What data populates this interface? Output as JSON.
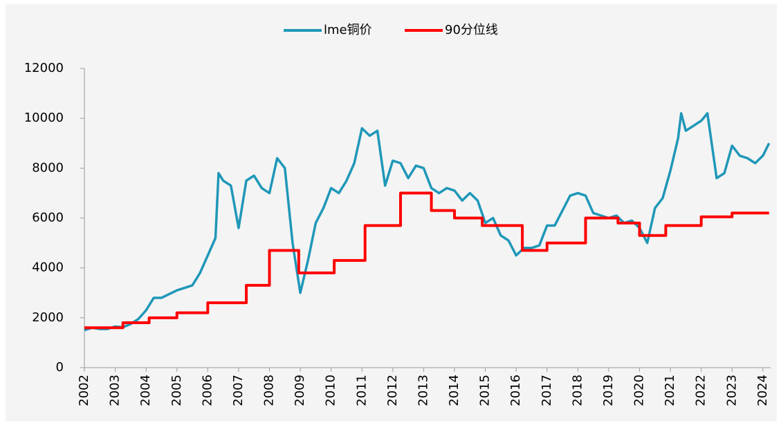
{
  "chart_data": {
    "type": "line",
    "xlim": [
      2002,
      2024.25
    ],
    "xticks": [
      {
        "value": 2002,
        "label": "2002"
      },
      {
        "value": 2003,
        "label": "2003"
      },
      {
        "value": 2004,
        "label": "2004"
      },
      {
        "value": 2005,
        "label": "2005"
      },
      {
        "value": 2006,
        "label": "2006"
      },
      {
        "value": 2007,
        "label": "2007"
      },
      {
        "value": 2008,
        "label": "2008"
      },
      {
        "value": 2009,
        "label": "2009"
      },
      {
        "value": 2010,
        "label": "2010"
      },
      {
        "value": 2011,
        "label": "2011"
      },
      {
        "value": 2012,
        "label": "2012"
      },
      {
        "value": 2013,
        "label": "2013"
      },
      {
        "value": 2014,
        "label": "2014"
      },
      {
        "value": 2015,
        "label": "2015"
      },
      {
        "value": 2016,
        "label": "2016"
      },
      {
        "value": 2017,
        "label": "2017"
      },
      {
        "value": 2018,
        "label": "2018"
      },
      {
        "value": 2019,
        "label": "2019"
      },
      {
        "value": 2020,
        "label": "2020"
      },
      {
        "value": 2021,
        "label": "2021"
      },
      {
        "value": 2022,
        "label": "2022"
      },
      {
        "value": 2023,
        "label": "2023"
      },
      {
        "value": 2024,
        "label": "2024"
      }
    ],
    "ylim": [
      0,
      12000
    ],
    "yticks": [
      0,
      2000,
      4000,
      6000,
      8000,
      10000,
      12000
    ],
    "legend": "top",
    "series": [
      {
        "name": "lme铜价",
        "color": "#1f97b8",
        "x": [
          2002.0,
          2002.25,
          2002.5,
          2002.75,
          2003.0,
          2003.25,
          2003.5,
          2003.75,
          2004.0,
          2004.25,
          2004.5,
          2004.75,
          2005.0,
          2005.25,
          2005.5,
          2005.75,
          2006.0,
          2006.25,
          2006.35,
          2006.5,
          2006.75,
          2007.0,
          2007.25,
          2007.5,
          2007.75,
          2008.0,
          2008.25,
          2008.5,
          2008.75,
          2009.0,
          2009.25,
          2009.5,
          2009.75,
          2010.0,
          2010.25,
          2010.5,
          2010.75,
          2011.0,
          2011.25,
          2011.5,
          2011.75,
          2012.0,
          2012.25,
          2012.5,
          2012.75,
          2013.0,
          2013.25,
          2013.5,
          2013.75,
          2014.0,
          2014.25,
          2014.5,
          2014.75,
          2015.0,
          2015.25,
          2015.5,
          2015.75,
          2016.0,
          2016.25,
          2016.5,
          2016.75,
          2017.0,
          2017.25,
          2017.5,
          2017.75,
          2018.0,
          2018.25,
          2018.5,
          2018.75,
          2019.0,
          2019.25,
          2019.5,
          2019.75,
          2020.0,
          2020.25,
          2020.5,
          2020.75,
          2021.0,
          2021.25,
          2021.35,
          2021.5,
          2021.75,
          2022.0,
          2022.2,
          2022.5,
          2022.75,
          2023.0,
          2023.25,
          2023.5,
          2023.75,
          2024.0,
          2024.2
        ],
        "values": [
          1500,
          1600,
          1550,
          1550,
          1650,
          1620,
          1750,
          1950,
          2300,
          2800,
          2800,
          2950,
          3100,
          3200,
          3300,
          3800,
          4500,
          5200,
          7800,
          7500,
          7300,
          5600,
          7500,
          7700,
          7200,
          7000,
          8400,
          8000,
          5000,
          3000,
          4300,
          5800,
          6400,
          7200,
          7000,
          7500,
          8200,
          9600,
          9300,
          9500,
          7300,
          8300,
          8200,
          7600,
          8100,
          8000,
          7200,
          7000,
          7200,
          7100,
          6700,
          7000,
          6700,
          5800,
          6000,
          5300,
          5100,
          4500,
          4800,
          4800,
          4900,
          5700,
          5700,
          6300,
          6900,
          7000,
          6900,
          6200,
          6100,
          6000,
          6100,
          5800,
          5900,
          5600,
          5000,
          6400,
          6800,
          7900,
          9200,
          10200,
          9500,
          9700,
          9900,
          10200,
          7600,
          7800,
          8900,
          8500,
          8400,
          8200,
          8500,
          9000
        ]
      },
      {
        "name": "90分位线",
        "color": "#ff0000",
        "x": [
          2002.0,
          2003.25,
          2003.25,
          2004.1,
          2004.1,
          2005.0,
          2005.0,
          2006.0,
          2006.0,
          2007.25,
          2007.25,
          2008.0,
          2008.0,
          2008.95,
          2008.95,
          2010.1,
          2010.1,
          2011.1,
          2011.1,
          2012.25,
          2012.25,
          2013.25,
          2013.25,
          2014.0,
          2014.0,
          2014.9,
          2014.9,
          2016.2,
          2016.2,
          2017.0,
          2017.0,
          2018.25,
          2018.25,
          2019.3,
          2019.3,
          2020.0,
          2020.0,
          2020.85,
          2020.85,
          2022.0,
          2022.0,
          2023.0,
          2023.0,
          2024.2
        ],
        "values": [
          1600,
          1600,
          1800,
          1800,
          2000,
          2000,
          2200,
          2200,
          2600,
          2600,
          3300,
          3300,
          4700,
          4700,
          3800,
          3800,
          4300,
          4300,
          5700,
          5700,
          7000,
          7000,
          6300,
          6300,
          6000,
          6000,
          5700,
          5700,
          4700,
          4700,
          5000,
          5000,
          6000,
          6000,
          5800,
          5800,
          5300,
          5300,
          5700,
          5700,
          6050,
          6050,
          6200,
          6200
        ]
      }
    ]
  }
}
